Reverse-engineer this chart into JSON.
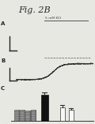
{
  "title": "Fig. 2B",
  "title_fontsize": 8,
  "bg_color": "#e8e8e2",
  "panel_a_label": "A",
  "panel_b_label": "B",
  "panel_c_label": "C",
  "bar_filled_color": "#111111",
  "bar_empty_color": "#f8f8f8",
  "bar_hatched_color": "#aaaaaa",
  "annotation_text": "5 mM KCl",
  "trace_color": "#333333",
  "dashed_color": "#555555",
  "scale_bar_color": "#222222"
}
